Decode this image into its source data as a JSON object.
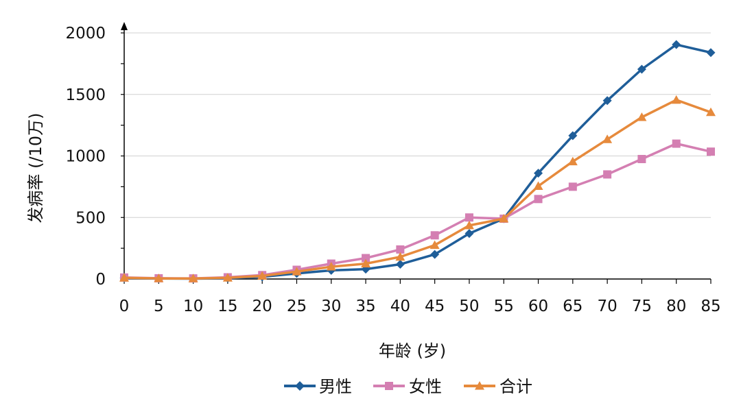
{
  "chart_data": {
    "type": "line",
    "xlabel": "年龄 (岁)",
    "ylabel": "发病率 (/10万)",
    "x": [
      0,
      5,
      10,
      15,
      20,
      25,
      30,
      35,
      40,
      45,
      50,
      55,
      60,
      65,
      70,
      75,
      80,
      85
    ],
    "xlim": [
      0,
      85
    ],
    "ylim": [
      0,
      2000
    ],
    "yticks": [
      0,
      500,
      1000,
      1500,
      2000
    ],
    "grid": true,
    "legend_position": "bottom",
    "series": [
      {
        "name": "男性",
        "color": "#1F5E99",
        "marker": "diamond",
        "values": [
          8,
          4,
          3,
          6,
          18,
          45,
          70,
          80,
          120,
          200,
          370,
          490,
          860,
          1165,
          1450,
          1705,
          1905,
          1840
        ]
      },
      {
        "name": "女性",
        "color": "#D47FB2",
        "marker": "square",
        "values": [
          12,
          6,
          5,
          14,
          32,
          75,
          125,
          170,
          240,
          355,
          500,
          490,
          650,
          750,
          850,
          975,
          1100,
          1035
        ]
      },
      {
        "name": "合计",
        "color": "#E68A3C",
        "marker": "triangle",
        "values": [
          10,
          5,
          4,
          10,
          25,
          60,
          100,
          125,
          180,
          275,
          435,
          490,
          755,
          955,
          1135,
          1315,
          1455,
          1355
        ]
      }
    ]
  }
}
